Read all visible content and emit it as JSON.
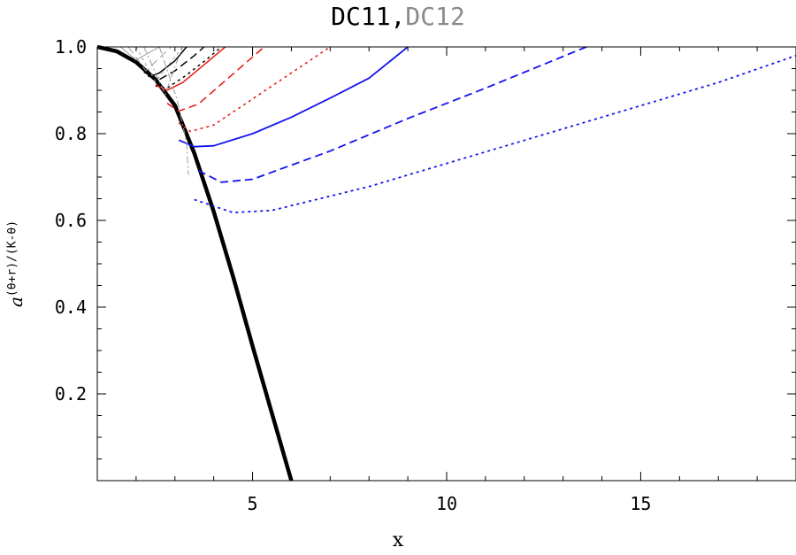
{
  "chart_data": {
    "type": "line",
    "title": "DC11,DC12",
    "title_parts": [
      {
        "text": "DC11,",
        "color": "#000000"
      },
      {
        "text": "DC12",
        "color": "#8a8a8a"
      }
    ],
    "xlabel": "x",
    "ylabel_base": "a",
    "ylabel_exponent": "(θ+r)/(K-θ)",
    "xlim": [
      1,
      19
    ],
    "ylim": [
      0,
      1.0
    ],
    "xticks": [
      5,
      10,
      15
    ],
    "xtick_labels": [
      "5",
      "10",
      "15"
    ],
    "yticks": [
      0.2,
      0.4,
      0.6,
      0.8,
      1.0
    ],
    "ytick_labels": [
      "0.2",
      "0.4",
      "0.6",
      "0.8",
      "1.0"
    ],
    "grid": false,
    "colors": {
      "black": "#000000",
      "red": "#e8150f",
      "blue": "#1414f0",
      "gray": "#9a9a9a"
    },
    "series": [
      {
        "color": "#000000",
        "style": "solid",
        "width": 4.5,
        "points": [
          [
            1.0,
            1.0
          ],
          [
            1.5,
            0.99
          ],
          [
            2.0,
            0.965
          ],
          [
            2.5,
            0.925
          ],
          [
            3.0,
            0.865
          ],
          [
            3.5,
            0.755
          ],
          [
            4.0,
            0.62
          ],
          [
            4.5,
            0.47
          ],
          [
            5.0,
            0.31
          ],
          [
            5.5,
            0.155
          ],
          [
            6.0,
            0.0
          ]
        ]
      },
      {
        "color": "#000000",
        "style": "solid",
        "width": 1.5,
        "points": [
          [
            2.2,
            0.942
          ],
          [
            2.4,
            0.933
          ],
          [
            2.6,
            0.94
          ],
          [
            3.0,
            0.968
          ],
          [
            3.3,
            1.0
          ]
        ]
      },
      {
        "color": "#000000",
        "style": "dashed",
        "width": 1.5,
        "points": [
          [
            2.3,
            0.933
          ],
          [
            2.6,
            0.925
          ],
          [
            3.0,
            0.945
          ],
          [
            3.5,
            0.98
          ],
          [
            3.75,
            1.0
          ]
        ]
      },
      {
        "color": "#000000",
        "style": "dotted",
        "width": 1.5,
        "points": [
          [
            2.5,
            0.91
          ],
          [
            2.8,
            0.905
          ],
          [
            3.3,
            0.935
          ],
          [
            3.8,
            0.97
          ],
          [
            4.2,
            1.0
          ]
        ]
      },
      {
        "color": "#e8150f",
        "style": "solid",
        "width": 1.5,
        "points": [
          [
            2.5,
            0.912
          ],
          [
            2.8,
            0.9
          ],
          [
            3.2,
            0.918
          ],
          [
            3.7,
            0.955
          ],
          [
            4.3,
            1.0
          ]
        ]
      },
      {
        "color": "#e8150f",
        "style": "dashed",
        "width": 1.5,
        "points": [
          [
            2.8,
            0.87
          ],
          [
            3.1,
            0.852
          ],
          [
            3.6,
            0.868
          ],
          [
            4.4,
            0.93
          ],
          [
            5.3,
            1.0
          ]
        ]
      },
      {
        "color": "#e8150f",
        "style": "dotted",
        "width": 1.5,
        "points": [
          [
            3.1,
            0.825
          ],
          [
            3.4,
            0.805
          ],
          [
            4.0,
            0.82
          ],
          [
            5.0,
            0.88
          ],
          [
            7.0,
            1.0
          ]
        ]
      },
      {
        "color": "#1414f0",
        "style": "solid",
        "width": 1.8,
        "points": [
          [
            3.1,
            0.785
          ],
          [
            3.5,
            0.77
          ],
          [
            4.0,
            0.772
          ],
          [
            5.0,
            0.8
          ],
          [
            6.0,
            0.838
          ],
          [
            7.0,
            0.882
          ],
          [
            8.0,
            0.928
          ],
          [
            9.0,
            1.0
          ]
        ]
      },
      {
        "color": "#1414f0",
        "style": "dashed",
        "width": 1.8,
        "points": [
          [
            3.6,
            0.715
          ],
          [
            4.2,
            0.688
          ],
          [
            5.0,
            0.695
          ],
          [
            7.0,
            0.76
          ],
          [
            9.0,
            0.835
          ],
          [
            11.0,
            0.905
          ],
          [
            13.6,
            1.0
          ]
        ]
      },
      {
        "color": "#1414f0",
        "style": "dotted",
        "width": 1.8,
        "points": [
          [
            3.5,
            0.648
          ],
          [
            4.5,
            0.618
          ],
          [
            5.5,
            0.623
          ],
          [
            8.0,
            0.678
          ],
          [
            11.0,
            0.758
          ],
          [
            14.0,
            0.838
          ],
          [
            17.0,
            0.918
          ],
          [
            19.0,
            0.98
          ]
        ]
      },
      {
        "color": "#9a9a9a",
        "style": "solid",
        "width": 1.0,
        "points": [
          [
            1.6,
            1.0
          ],
          [
            2.0,
            0.97
          ],
          [
            2.6,
            1.0
          ]
        ]
      },
      {
        "color": "#9a9a9a",
        "style": "dashed",
        "width": 1.0,
        "points": [
          [
            1.8,
            1.0
          ],
          [
            2.25,
            0.945
          ],
          [
            2.9,
            1.0
          ]
        ]
      },
      {
        "color": "#9a9a9a",
        "style": "dotted",
        "width": 1.0,
        "points": [
          [
            2.0,
            1.0
          ],
          [
            2.5,
            0.92
          ],
          [
            3.2,
            1.0
          ]
        ]
      },
      {
        "color": "#9a9a9a",
        "style": "dashdot",
        "width": 1.0,
        "points": [
          [
            2.2,
            1.0
          ],
          [
            2.75,
            0.89
          ],
          [
            3.0,
            0.955
          ],
          [
            3.2,
            1.0
          ]
        ]
      },
      {
        "color": "#9a9a9a",
        "style": "dashdot",
        "width": 1.0,
        "points": [
          [
            2.6,
            1.0
          ],
          [
            3.05,
            0.88
          ],
          [
            3.3,
            0.78
          ],
          [
            3.35,
            0.705
          ]
        ]
      }
    ]
  }
}
